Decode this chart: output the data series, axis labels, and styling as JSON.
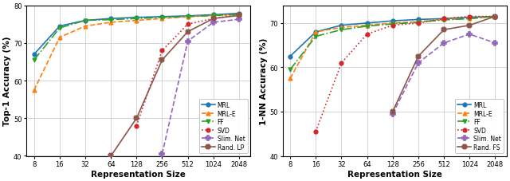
{
  "x_ticks": [
    8,
    16,
    32,
    64,
    128,
    256,
    512,
    1024,
    2048
  ],
  "left_chart": {
    "ylabel": "Top-1 Accuracy (%)",
    "xlabel": "Representation Size",
    "ylim": [
      40,
      80
    ],
    "yticks": [
      40,
      50,
      60,
      70,
      80
    ],
    "series": [
      {
        "label": "MRL",
        "color": "#1f77b4",
        "linestyle": "-",
        "marker": "o",
        "x": [
          8,
          16,
          32,
          64,
          128,
          256,
          512,
          1024,
          2048
        ],
        "y": [
          67.0,
          74.5,
          76.0,
          76.5,
          76.8,
          77.0,
          77.2,
          77.5,
          77.9
        ]
      },
      {
        "label": "MRL-E",
        "color": "#ff7f0e",
        "linestyle": "--",
        "marker": "^",
        "x": [
          8,
          16,
          32,
          64,
          128,
          256,
          512,
          1024,
          2048
        ],
        "y": [
          57.5,
          71.5,
          74.5,
          75.5,
          76.0,
          76.5,
          77.0,
          77.3,
          77.6
        ]
      },
      {
        "label": "FF",
        "color": "#2ca02c",
        "linestyle": "-.",
        "marker": "v",
        "x": [
          8,
          16,
          32,
          64,
          128,
          256,
          512,
          1024,
          2048
        ],
        "y": [
          65.5,
          74.0,
          76.0,
          76.2,
          76.5,
          76.8,
          77.0,
          77.3,
          77.6
        ]
      },
      {
        "label": "SVD",
        "color": "#d62728",
        "linestyle": ":",
        "marker": "o",
        "x": [
          128,
          256,
          512,
          1024,
          2048
        ],
        "y": [
          48.0,
          68.0,
          75.0,
          76.5,
          77.5
        ]
      },
      {
        "label": "Slim. Net",
        "color": "#9467bd",
        "linestyle": "--",
        "marker": "P",
        "x": [
          256,
          512,
          1024,
          2048
        ],
        "y": [
          40.5,
          70.5,
          75.5,
          76.3
        ]
      },
      {
        "label": "Rand. LP",
        "color": "#8c564b",
        "linestyle": "-",
        "marker": "X",
        "x": [
          64,
          128,
          256,
          512,
          1024,
          2048
        ],
        "y": [
          40.0,
          50.0,
          65.5,
          73.0,
          76.5,
          77.3
        ]
      }
    ]
  },
  "right_chart": {
    "ylabel": "1-NN Accuracy (%)",
    "xlabel": "Representation Size",
    "ylim": [
      40,
      74
    ],
    "yticks": [
      40,
      50,
      60,
      70
    ],
    "series": [
      {
        "label": "MRL",
        "color": "#1f77b4",
        "linestyle": "-",
        "marker": "o",
        "x": [
          8,
          16,
          32,
          64,
          128,
          256,
          512,
          1024,
          2048
        ],
        "y": [
          62.5,
          68.0,
          69.5,
          70.0,
          70.5,
          70.8,
          71.0,
          71.3,
          71.5
        ]
      },
      {
        "label": "MRL-E",
        "color": "#ff7f0e",
        "linestyle": "--",
        "marker": "^",
        "x": [
          8,
          16,
          32,
          64,
          128,
          256,
          512,
          1024,
          2048
        ],
        "y": [
          57.5,
          68.0,
          69.0,
          69.5,
          70.0,
          70.3,
          70.8,
          71.0,
          71.5
        ]
      },
      {
        "label": "FF",
        "color": "#2ca02c",
        "linestyle": "-.",
        "marker": "v",
        "x": [
          8,
          16,
          32,
          64,
          128,
          256,
          512,
          1024,
          2048
        ],
        "y": [
          59.5,
          67.0,
          68.5,
          69.3,
          69.8,
          70.2,
          70.7,
          71.0,
          71.5
        ]
      },
      {
        "label": "SVD",
        "color": "#d62728",
        "linestyle": ":",
        "marker": "o",
        "x": [
          16,
          32,
          64,
          128,
          256,
          512,
          1024,
          2048
        ],
        "y": [
          45.5,
          61.0,
          67.5,
          69.5,
          70.0,
          71.0,
          71.5,
          71.5
        ]
      },
      {
        "label": "Slim. Net",
        "color": "#9467bd",
        "linestyle": "--",
        "marker": "P",
        "x": [
          128,
          256,
          512,
          1024,
          2048
        ],
        "y": [
          49.5,
          61.0,
          65.5,
          67.5,
          65.5
        ]
      },
      {
        "label": "Rand. FS",
        "color": "#8c564b",
        "linestyle": "-",
        "marker": "X",
        "x": [
          128,
          256,
          512,
          1024,
          2048
        ],
        "y": [
          50.0,
          62.5,
          68.5,
          69.5,
          71.5
        ]
      }
    ]
  },
  "background_color": "#ffffff",
  "grid_color": "#cccccc"
}
